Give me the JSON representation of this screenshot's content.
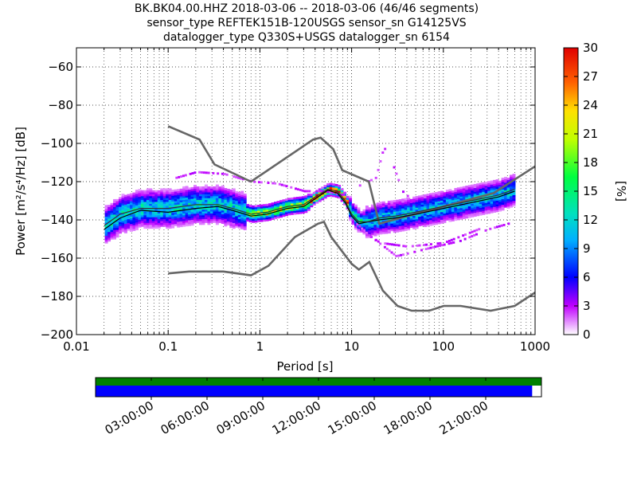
{
  "chart_data": {
    "type": "heatmap",
    "title_lines": [
      "BK.BK04.00.HHZ   2018-03-06 -- 2018-03-06  (46/46 segments)",
      "sensor_type REFTEK151B-120USGS sensor_sn G14125VS",
      "datalogger_type Q330S+USGS datalogger_sn 6154"
    ],
    "xlabel": "Period [s]",
    "ylabel": "Power [m²/s⁴/Hz] [dB]",
    "xscale": "log",
    "xlim": [
      0.01,
      1000
    ],
    "ylim": [
      -200,
      -50
    ],
    "xticks": [
      {
        "value": 0.01,
        "label": "0.01"
      },
      {
        "value": 0.1,
        "label": "0.1"
      },
      {
        "value": 1,
        "label": "1"
      },
      {
        "value": 10,
        "label": "10"
      },
      {
        "value": 100,
        "label": "100"
      },
      {
        "value": 1000,
        "label": "1000"
      }
    ],
    "yticks": [
      {
        "value": -60,
        "label": "−60"
      },
      {
        "value": -80,
        "label": "−80"
      },
      {
        "value": -100,
        "label": "−100"
      },
      {
        "value": -120,
        "label": "−120"
      },
      {
        "value": -140,
        "label": "−140"
      },
      {
        "value": -160,
        "label": "−160"
      },
      {
        "value": -180,
        "label": "−180"
      },
      {
        "value": -200,
        "label": "−200"
      }
    ],
    "grid": true,
    "colorbar": {
      "label": "[%]",
      "min": 0,
      "max": 30,
      "ticks": [
        {
          "value": 0,
          "label": "0"
        },
        {
          "value": 3,
          "label": "3"
        },
        {
          "value": 6,
          "label": "6"
        },
        {
          "value": 9,
          "label": "9"
        },
        {
          "value": 12,
          "label": "12"
        },
        {
          "value": 15,
          "label": "15"
        },
        {
          "value": 18,
          "label": "18"
        },
        {
          "value": 21,
          "label": "21"
        },
        {
          "value": 24,
          "label": "24"
        },
        {
          "value": 27,
          "label": "27"
        },
        {
          "value": 30,
          "label": "30"
        }
      ]
    },
    "nhnm": [
      [
        0.1,
        -91
      ],
      [
        0.22,
        -98
      ],
      [
        0.32,
        -111
      ],
      [
        0.8,
        -120
      ],
      [
        3.8,
        -98
      ],
      [
        4.6,
        -97
      ],
      [
        6.3,
        -103
      ],
      [
        7.9,
        -114
      ],
      [
        15.4,
        -120
      ],
      [
        20,
        -142
      ],
      [
        354,
        -126
      ],
      [
        1000,
        -112
      ]
    ],
    "nlnm": [
      [
        0.1,
        -168
      ],
      [
        0.17,
        -167
      ],
      [
        0.4,
        -167
      ],
      [
        0.8,
        -169
      ],
      [
        1.24,
        -164
      ],
      [
        2.4,
        -149
      ],
      [
        4.3,
        -142
      ],
      [
        5,
        -141
      ],
      [
        6,
        -149
      ],
      [
        10,
        -163
      ],
      [
        12,
        -166
      ],
      [
        15.6,
        -162
      ],
      [
        21.9,
        -177
      ],
      [
        31.6,
        -185
      ],
      [
        45,
        -187.5
      ],
      [
        70,
        -187.5
      ],
      [
        101,
        -185
      ],
      [
        154,
        -185
      ],
      [
        328,
        -187.5
      ],
      [
        600,
        -185
      ],
      [
        1000,
        -178
      ]
    ],
    "mode_line": [
      [
        0.02,
        -143
      ],
      [
        0.03,
        -137
      ],
      [
        0.05,
        -134
      ],
      [
        0.1,
        -134
      ],
      [
        0.2,
        -132
      ],
      [
        0.35,
        -132
      ],
      [
        0.5,
        -134
      ],
      [
        0.8,
        -137
      ],
      [
        1.2,
        -136
      ],
      [
        2,
        -133
      ],
      [
        3,
        -132
      ],
      [
        4,
        -128
      ],
      [
        5.5,
        -124
      ],
      [
        7,
        -125
      ],
      [
        8.5,
        -130
      ],
      [
        10,
        -137
      ],
      [
        12,
        -141
      ],
      [
        15,
        -141
      ],
      [
        20,
        -139
      ],
      [
        30,
        -138
      ],
      [
        50,
        -136
      ],
      [
        100,
        -133
      ],
      [
        200,
        -130
      ],
      [
        400,
        -127
      ],
      [
        600,
        -124
      ]
    ],
    "mean_line": [
      [
        0.02,
        -145
      ],
      [
        0.03,
        -139
      ],
      [
        0.05,
        -135
      ],
      [
        0.1,
        -136
      ],
      [
        0.2,
        -134
      ],
      [
        0.35,
        -133
      ],
      [
        0.5,
        -135
      ],
      [
        0.8,
        -138
      ],
      [
        1.2,
        -137
      ],
      [
        2,
        -134
      ],
      [
        3,
        -133
      ],
      [
        4,
        -129
      ],
      [
        5.5,
        -124.5
      ],
      [
        7,
        -126
      ],
      [
        8.5,
        -131
      ],
      [
        10,
        -138
      ],
      [
        12,
        -142
      ],
      [
        15,
        -141
      ],
      [
        20,
        -140
      ],
      [
        30,
        -139
      ],
      [
        50,
        -137
      ],
      [
        100,
        -134
      ],
      [
        200,
        -131
      ],
      [
        400,
        -128
      ],
      [
        600,
        -125
      ]
    ],
    "outlier_lines": [
      [
        [
          0.12,
          -118
        ],
        [
          0.2,
          -115
        ],
        [
          0.4,
          -116
        ],
        [
          0.8,
          -120
        ],
        [
          1.5,
          -121
        ],
        [
          3,
          -125
        ],
        [
          5,
          -125
        ],
        [
          8,
          -127
        ]
      ],
      [
        [
          12,
          -122
        ],
        [
          18,
          -118
        ],
        [
          22,
          -102
        ],
        [
          28,
          -112
        ],
        [
          35,
          -125
        ],
        [
          50,
          -132
        ]
      ],
      [
        [
          10,
          -140
        ],
        [
          15,
          -148
        ],
        [
          22,
          -154
        ],
        [
          30,
          -159
        ],
        [
          45,
          -157
        ],
        [
          80,
          -154
        ],
        [
          150,
          -151
        ],
        [
          300,
          -145
        ],
        [
          500,
          -142
        ]
      ],
      [
        [
          12,
          -145
        ],
        [
          20,
          -152
        ],
        [
          40,
          -154
        ],
        [
          100,
          -152
        ],
        [
          300,
          -143
        ]
      ]
    ]
  },
  "time_axis": {
    "labels": [
      "03:00:00",
      "06:00:00",
      "09:00:00",
      "12:00:00",
      "15:00:00",
      "18:00:00",
      "21:00:00"
    ],
    "hours": [
      3,
      6,
      9,
      12,
      15,
      18,
      21
    ],
    "range_hours": [
      0,
      24
    ],
    "bar_colors": {
      "upper": "#008000",
      "lower": "#0000ff"
    },
    "upper_coverage_hours": [
      0,
      24
    ],
    "lower_coverage_hours": [
      0,
      23.5
    ]
  }
}
